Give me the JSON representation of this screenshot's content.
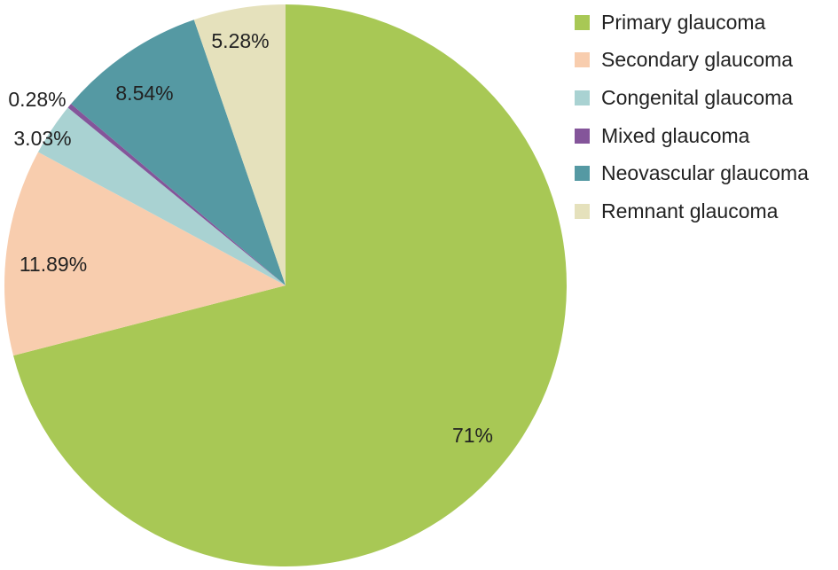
{
  "chart_data": {
    "type": "pie",
    "start_angle_deg": 0,
    "direction": "clockwise",
    "slices": [
      {
        "label": "Primary glaucoma",
        "value": 71,
        "display": "71%",
        "color": "#a8c855"
      },
      {
        "label": "Secondary glaucoma",
        "value": 11.89,
        "display": "11.89%",
        "color": "#f8cdae"
      },
      {
        "label": "Congenital glaucoma",
        "value": 3.03,
        "display": "3.03%",
        "color": "#a9d2d2"
      },
      {
        "label": "Mixed glaucoma",
        "value": 0.28,
        "display": "0.28%",
        "color": "#84559a"
      },
      {
        "label": "Neovascular glaucoma",
        "value": 8.54,
        "display": "8.54%",
        "color": "#5599a3"
      },
      {
        "label": "Remnant glaucoma",
        "value": 5.28,
        "display": "5.28%",
        "color": "#e5e1bc"
      }
    ],
    "legend_position": "top-right"
  }
}
